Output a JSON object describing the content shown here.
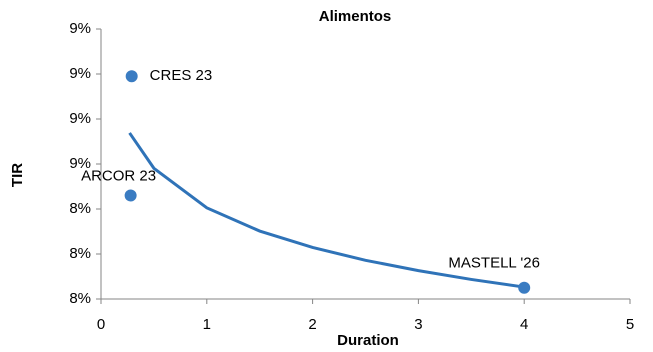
{
  "chart_data": {
    "type": "scatter",
    "title": "Alimentos",
    "x_label": "Duration",
    "y_label": "TIR",
    "xlim": [
      0,
      5
    ],
    "xticks": [
      0,
      1,
      2,
      3,
      4,
      5
    ],
    "ylim": [
      8.0,
      9.2
    ],
    "yticks": [
      {
        "value": 8.0,
        "label": "8%"
      },
      {
        "value": 8.2,
        "label": "8%"
      },
      {
        "value": 8.4,
        "label": "8%"
      },
      {
        "value": 8.6,
        "label": "9%"
      },
      {
        "value": 8.8,
        "label": "9%"
      },
      {
        "value": 9.0,
        "label": "9%"
      },
      {
        "value": 9.2,
        "label": "9%"
      }
    ],
    "series": [
      {
        "color": "#3a7cc2",
        "x": [
          0.29,
          0.28,
          4.0
        ],
        "values": [
          8.99,
          8.46,
          8.05
        ],
        "point_labels": [
          "CRES 23",
          "ARCOR 23",
          "MASTELL '26"
        ]
      }
    ],
    "trendline": {
      "type": "line",
      "color": "#2f73b8",
      "x": [
        0.27,
        0.5,
        1,
        1.5,
        2,
        2.5,
        3,
        3.5,
        4
      ],
      "values": [
        8.738,
        8.581,
        8.405,
        8.302,
        8.229,
        8.172,
        8.126,
        8.087,
        8.053
      ]
    }
  }
}
